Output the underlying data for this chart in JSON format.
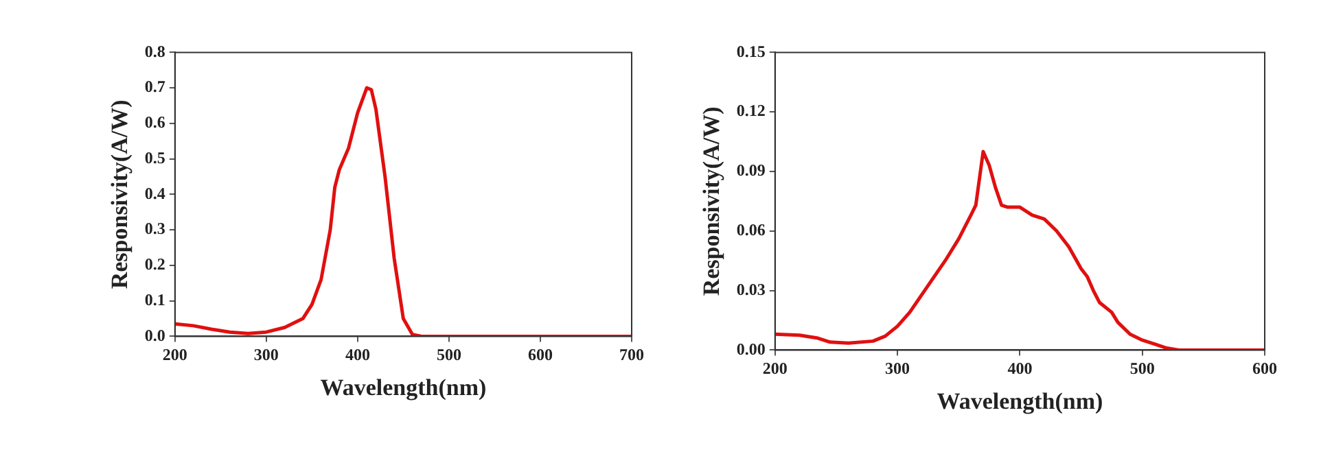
{
  "chart_data": [
    {
      "type": "line",
      "xlabel": "Wavelength(nm)",
      "ylabel": "Responsivity(A/W)",
      "x": [
        200,
        220,
        240,
        260,
        280,
        300,
        320,
        340,
        350,
        360,
        370,
        375,
        380,
        390,
        400,
        410,
        415,
        420,
        430,
        440,
        450,
        460,
        470,
        500,
        700
      ],
      "series": [
        {
          "color": "#e01010",
          "values": [
            0.035,
            0.03,
            0.02,
            0.012,
            0.008,
            0.012,
            0.025,
            0.05,
            0.09,
            0.16,
            0.3,
            0.42,
            0.47,
            0.53,
            0.63,
            0.7,
            0.695,
            0.64,
            0.45,
            0.22,
            0.05,
            0.005,
            0,
            0,
            0
          ]
        }
      ],
      "xlim": [
        200,
        700
      ],
      "xticks": [
        200,
        300,
        400,
        500,
        600,
        700
      ],
      "ylim": [
        0,
        0.8
      ],
      "yticks": [
        {
          "value": 0,
          "label": "0.0"
        },
        0.1,
        0.2,
        0.3,
        0.4,
        0.5,
        0.6,
        0.7,
        0.8
      ],
      "grid": false,
      "legend": false,
      "marker": "none",
      "line_style": "solid"
    },
    {
      "type": "line",
      "xlabel": "Wavelength(nm)",
      "ylabel": "Responsivity(A/W)",
      "x": [
        200,
        220,
        235,
        245,
        260,
        280,
        290,
        300,
        310,
        320,
        330,
        340,
        350,
        360,
        364,
        370,
        375,
        380,
        385,
        390,
        400,
        410,
        420,
        430,
        440,
        450,
        455,
        460,
        465,
        475,
        480,
        490,
        500,
        510,
        520,
        530,
        600
      ],
      "series": [
        {
          "color": "#e01010",
          "values": [
            0.008,
            0.0075,
            0.006,
            0.004,
            0.0035,
            0.0045,
            0.007,
            0.012,
            0.019,
            0.028,
            0.037,
            0.046,
            0.056,
            0.068,
            0.073,
            0.1,
            0.093,
            0.082,
            0.073,
            0.072,
            0.072,
            0.068,
            0.066,
            0.06,
            0.052,
            0.041,
            0.037,
            0.03,
            0.024,
            0.019,
            0.014,
            0.008,
            0.005,
            0.003,
            0.001,
            0,
            0
          ]
        }
      ],
      "xlim": [
        200,
        600
      ],
      "xticks": [
        200,
        300,
        400,
        500,
        600
      ],
      "ylim": [
        0,
        0.15
      ],
      "yticks": [
        {
          "value": 0,
          "label": "0.00"
        },
        {
          "value": 0.03,
          "label": "0.03"
        },
        {
          "value": 0.06,
          "label": "0.06"
        },
        {
          "value": 0.09,
          "label": "0.09"
        },
        {
          "value": 0.12,
          "label": "0.12"
        },
        {
          "value": 0.15,
          "label": "0.15"
        }
      ],
      "grid": false,
      "legend": false,
      "marker": "none",
      "line_style": "solid"
    }
  ]
}
